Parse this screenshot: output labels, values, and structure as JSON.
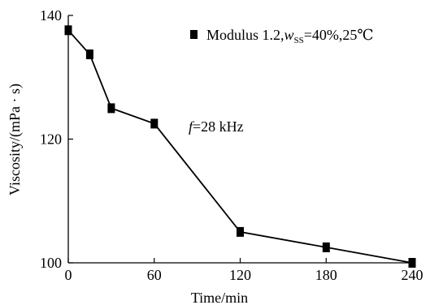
{
  "chart_data": {
    "type": "line",
    "xlabel": "Time/min",
    "ylabel": "Viscosity/(mPa · s)",
    "xlim": [
      0,
      240
    ],
    "ylim": [
      100,
      140
    ],
    "x_ticks": [
      0,
      60,
      120,
      180,
      240
    ],
    "y_ticks": [
      100,
      120,
      140
    ],
    "x_tick_labels": [
      "0",
      "60",
      "120",
      "180",
      "240"
    ],
    "y_tick_labels": [
      "100",
      "120",
      "140"
    ],
    "grid": false,
    "legend_position": "top-right",
    "series": [
      {
        "name": "Modulus 1.2, wSS=40%, 25℃",
        "marker": "square",
        "color": "#000000",
        "x": [
          0,
          15,
          30,
          60,
          120,
          180,
          240
        ],
        "y": [
          137.6,
          133.7,
          125.0,
          122.5,
          105.0,
          102.5,
          100.0
        ]
      }
    ],
    "legend": {
      "prefix": "Modulus 1.2,",
      "w": "w",
      "sub": "SS",
      "suffix": "=40%,25℃"
    },
    "annotation": {
      "f": "f",
      "rest": "=28 kHz"
    }
  }
}
